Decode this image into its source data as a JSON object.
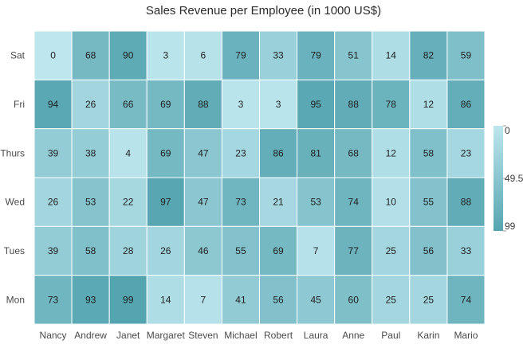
{
  "chart_data": {
    "type": "heatmap",
    "title": "Sales Revenue per Employee (in 1000 US$)",
    "xlabel": "",
    "ylabel": "",
    "x_categories": [
      "Nancy",
      "Andrew",
      "Janet",
      "Margaret",
      "Steven",
      "Michael",
      "Robert",
      "Laura",
      "Anne",
      "Paul",
      "Karin",
      "Mario"
    ],
    "y_categories": [
      "Sat",
      "Fri",
      "Thurs",
      "Wed",
      "Tues",
      "Mon"
    ],
    "values": [
      [
        0,
        68,
        90,
        3,
        6,
        79,
        33,
        79,
        51,
        14,
        82,
        59
      ],
      [
        94,
        26,
        66,
        69,
        88,
        3,
        3,
        95,
        88,
        78,
        12,
        86
      ],
      [
        39,
        38,
        4,
        69,
        47,
        23,
        86,
        81,
        68,
        12,
        58,
        23
      ],
      [
        26,
        53,
        22,
        97,
        47,
        73,
        21,
        53,
        74,
        10,
        55,
        88
      ],
      [
        39,
        58,
        28,
        26,
        46,
        55,
        69,
        7,
        77,
        25,
        56,
        33
      ],
      [
        73,
        93,
        99,
        14,
        7,
        41,
        56,
        45,
        60,
        25,
        25,
        74
      ]
    ],
    "color_range": {
      "min": 0,
      "max": 99,
      "min_color": "#bde6ee",
      "max_color": "#55a5b0"
    },
    "legend": {
      "position": "right",
      "labels": [
        "0",
        "49.5",
        "99"
      ]
    }
  }
}
